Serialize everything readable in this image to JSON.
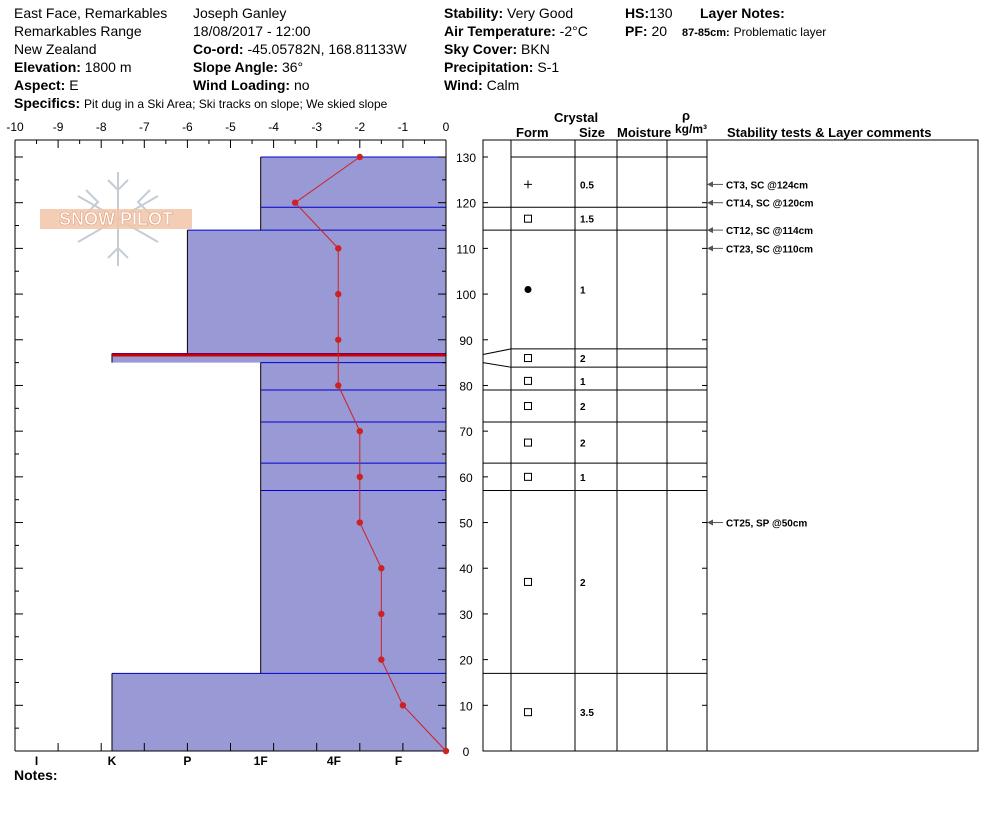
{
  "header": {
    "location_line1": "East Face, Remarkables",
    "location_line2": "Remarkables Range",
    "location_line3": "New Zealand",
    "elevation_label": "Elevation:",
    "elevation_value": "1800 m",
    "aspect_label": "Aspect:",
    "aspect_value": "E",
    "specifics_label": "Specifics:",
    "specifics_value": "Pit dug in a Ski Area; Ski tracks on slope; We skied slope",
    "observer": "Joseph Ganley",
    "datetime": "18/08/2017 - 12:00",
    "coord_label": "Co-ord:",
    "coord_value": "-45.05782N, 168.81133W",
    "slope_label": "Slope Angle:",
    "slope_value": "36°",
    "wind_loading_label": "Wind Loading:",
    "wind_loading_value": "no",
    "stability_label": "Stability:",
    "stability_value": "Very Good",
    "air_temp_label": "Air Temperature:",
    "air_temp_value": "-2°C",
    "sky_label": "Sky Cover:",
    "sky_value": "BKN",
    "precip_label": "Precipitation:",
    "precip_value": "S-1",
    "wind_label": "Wind:",
    "wind_value": "Calm",
    "hs_label": "HS:",
    "hs_value": "130",
    "pf_label": "PF:",
    "pf_value": "20",
    "layer_notes_label": "Layer Notes:",
    "layer_note_depth": "87-85cm:",
    "layer_note_text": "Problematic layer",
    "notes_label": "Notes:"
  },
  "columns": {
    "crystal": "Crystal",
    "form": "Form",
    "size": "Size",
    "moisture": "Moisture",
    "rho": "ρ",
    "density_unit": "kg/m³",
    "stability_comments": "Stability tests & Layer comments"
  },
  "logo": {
    "text": "SNOW PILOT"
  },
  "colors": {
    "layer_fill": "#9999d6",
    "layer_line": "#0000cc",
    "temp_line": "#cc2222",
    "problem_layer": "#cc0000"
  },
  "chart_data": {
    "type": "snow_profile",
    "temperature_axis": {
      "ticks": [
        -10,
        -9,
        -8,
        -7,
        -6,
        -5,
        -4,
        -3,
        -2,
        -1,
        0
      ],
      "range": [
        -10,
        0
      ]
    },
    "height_axis": {
      "ticks": [
        0,
        10,
        20,
        30,
        40,
        50,
        60,
        70,
        80,
        90,
        100,
        110,
        120,
        130
      ],
      "range": [
        0,
        130
      ]
    },
    "hardness_axis": {
      "labels": [
        "I",
        "K",
        "P",
        "1F",
        "4F",
        "F"
      ],
      "temperature_positions": [
        -9.5,
        -7.75,
        -6,
        -4.3,
        -2.6,
        -1.1
      ]
    },
    "layers": [
      {
        "top": 130,
        "bottom": 119,
        "hardness_temp": -4.3
      },
      {
        "top": 119,
        "bottom": 114,
        "hardness_temp": -4.3
      },
      {
        "top": 114,
        "bottom": 87,
        "hardness_temp": -6
      },
      {
        "top": 87,
        "bottom": 85,
        "hardness_temp": -7.75
      },
      {
        "top": 85,
        "bottom": 79,
        "hardness_temp": -4.3
      },
      {
        "top": 79,
        "bottom": 72,
        "hardness_temp": -4.3
      },
      {
        "top": 72,
        "bottom": 63,
        "hardness_temp": -4.3
      },
      {
        "top": 63,
        "bottom": 57,
        "hardness_temp": -4.3
      },
      {
        "top": 57,
        "bottom": 17,
        "hardness_temp": -4.3
      },
      {
        "top": 17,
        "bottom": 0,
        "hardness_temp": -7.75
      }
    ],
    "problem_layer": {
      "top": 87,
      "bottom": 85
    },
    "temperatures": [
      {
        "height": 130,
        "temp": -2
      },
      {
        "height": 120,
        "temp": -3.5
      },
      {
        "height": 110,
        "temp": -2.5
      },
      {
        "height": 100,
        "temp": -2.5
      },
      {
        "height": 90,
        "temp": -2.5
      },
      {
        "height": 80,
        "temp": -2.5
      },
      {
        "height": 70,
        "temp": -2
      },
      {
        "height": 60,
        "temp": -2
      },
      {
        "height": 50,
        "temp": -2
      },
      {
        "height": 40,
        "temp": -1.5
      },
      {
        "height": 30,
        "temp": -1.5
      },
      {
        "height": 20,
        "temp": -1.5
      },
      {
        "height": 10,
        "temp": -1
      },
      {
        "height": 0,
        "temp": 0
      }
    ],
    "crystals": [
      {
        "height": 124,
        "form": "plus",
        "size": "0.5"
      },
      {
        "height": 116.5,
        "form": "square",
        "size": "1.5"
      },
      {
        "height": 101,
        "form": "dot",
        "size": "1"
      },
      {
        "height": 86,
        "form": "square",
        "size": "2"
      },
      {
        "height": 81,
        "form": "square",
        "size": "1"
      },
      {
        "height": 75.5,
        "form": "square",
        "size": "2"
      },
      {
        "height": 67.5,
        "form": "square",
        "size": "2"
      },
      {
        "height": 60,
        "form": "square",
        "size": "1"
      },
      {
        "height": 37,
        "form": "square",
        "size": "2"
      },
      {
        "height": 8.5,
        "form": "square",
        "size": "3.5"
      }
    ],
    "stability_tests": [
      {
        "height": 124,
        "text": "CT3, SC @124cm"
      },
      {
        "height": 120,
        "text": "CT14, SC @120cm"
      },
      {
        "height": 114,
        "text": "CT12, SC @114cm"
      },
      {
        "height": 110,
        "text": "CT23, SC @110cm"
      },
      {
        "height": 50,
        "text": "CT25, SP @50cm"
      }
    ]
  }
}
